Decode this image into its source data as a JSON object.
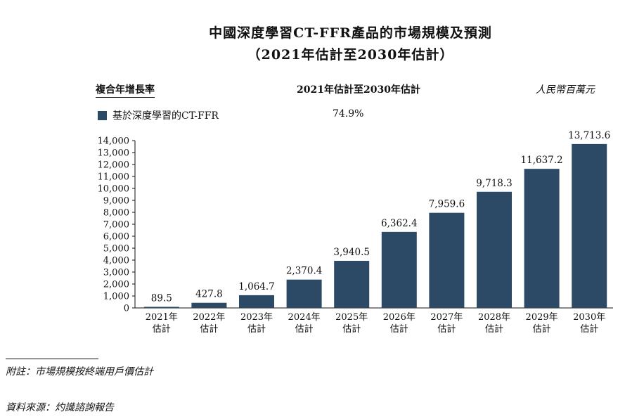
{
  "header": {
    "title_line1": "中國深度學習CT-FFR產品的市場規模及預測",
    "title_line2": "（2021年估計至2030年估計）",
    "cagr_label": "複合年增長率",
    "range_label": "2021年估計至2030年估計",
    "unit_label": "人民幣百萬元"
  },
  "legend": {
    "label": "基於深度學習的CT-FFR",
    "cagr_value": "74.9%"
  },
  "footer": {
    "note": "附註：市場規模按終端用戶價估計",
    "source": "資料來源：灼識諮詢報告"
  },
  "chart_data": {
    "type": "bar",
    "title": "中國深度學習CT-FFR產品的市場規模及預測",
    "subtitle": "（2021年估計至2030年估計）",
    "ylabel": "",
    "unit": "人民幣百萬元",
    "ylim": [
      0,
      14000
    ],
    "yticks": [
      "0",
      "1,000",
      "2,000",
      "3,000",
      "4,000",
      "5,000",
      "6,000",
      "7,000",
      "8,000",
      "9,000",
      "10,000",
      "11,000",
      "12,000",
      "13,000",
      "14,000"
    ],
    "categories": [
      [
        "2021年",
        "估計"
      ],
      [
        "2022年",
        "估計"
      ],
      [
        "2023年",
        "估計"
      ],
      [
        "2024年",
        "估計"
      ],
      [
        "2025年",
        "估計"
      ],
      [
        "2026年",
        "估計"
      ],
      [
        "2027年",
        "估計"
      ],
      [
        "2028年",
        "估計"
      ],
      [
        "2029年",
        "估計"
      ],
      [
        "2030年",
        "估計"
      ]
    ],
    "series": [
      {
        "name": "基於深度學習的CT-FFR",
        "values": [
          89.5,
          427.8,
          1064.7,
          2370.4,
          3940.5,
          6362.4,
          7959.6,
          9718.3,
          11637.2,
          13713.6
        ],
        "labels": [
          "89.5",
          "427.8",
          "1,064.7",
          "2,370.4",
          "3,940.5",
          "6,362.4",
          "7,959.6",
          "9,718.3",
          "11,637.2",
          "13,713.6"
        ]
      }
    ],
    "bar_color": "#2c4a66",
    "grid": false,
    "legend_position": "top-left"
  }
}
